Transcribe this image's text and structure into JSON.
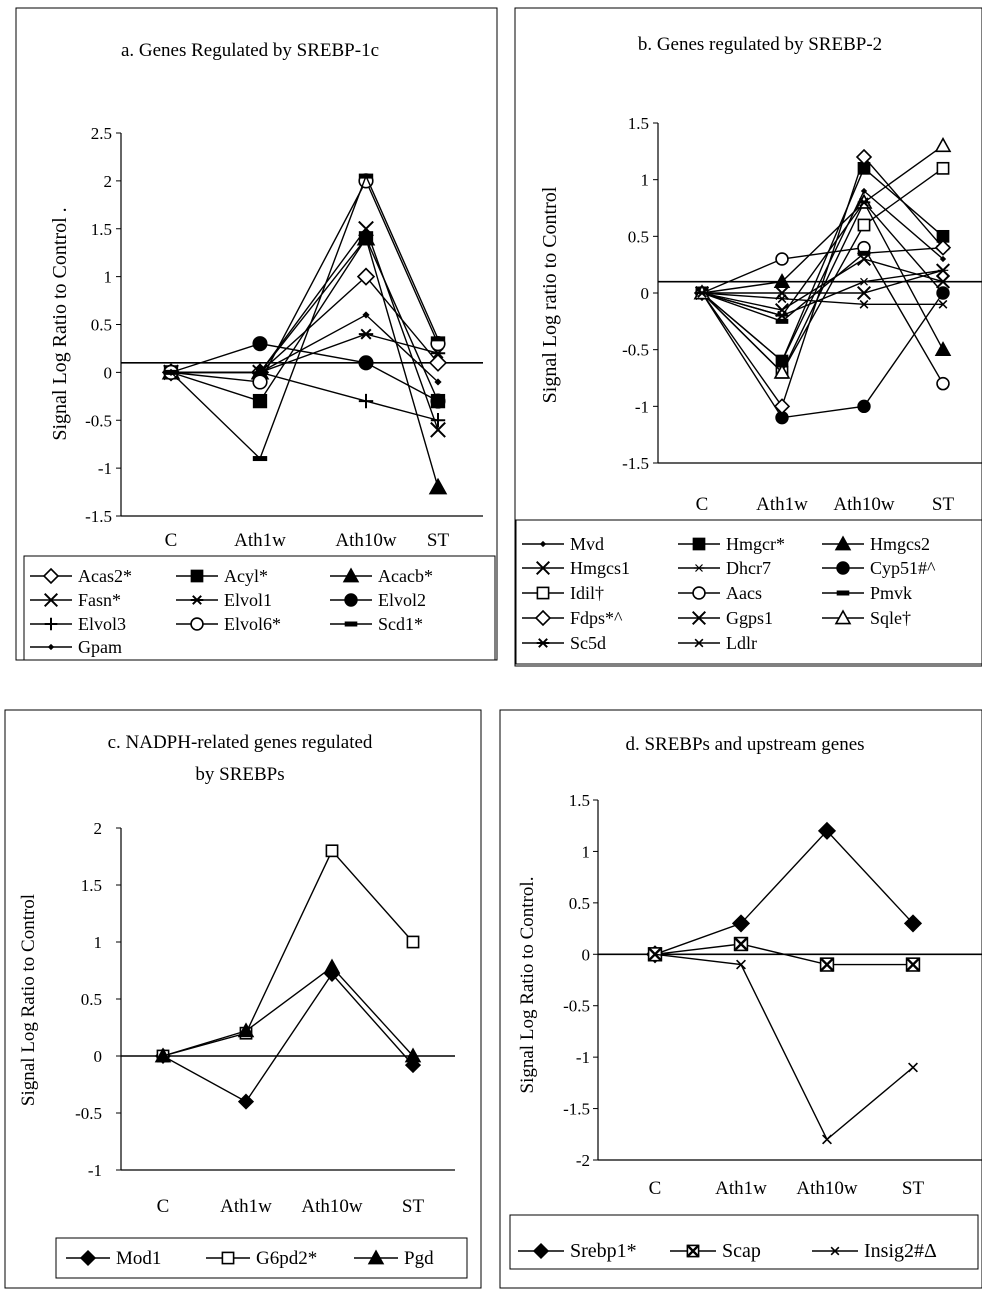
{
  "chart_data": [
    {
      "type": "line",
      "title": "a.  Genes Regulated by SREBP-1c",
      "ylabel": "Signal Log Ratio to Control .",
      "categories": [
        "C",
        "Ath1w",
        "Ath10w",
        "ST"
      ],
      "ylim": [
        -1.5,
        2.5
      ],
      "yticks": [
        "2.5",
        "2",
        "1.5",
        "1",
        "0.5",
        "0",
        "-0.5",
        "-1",
        "-1.5"
      ],
      "series": [
        {
          "name": "Acas2*",
          "marker": "diamond-open",
          "values": [
            0,
            0,
            1,
            0.1
          ]
        },
        {
          "name": "Acyl*",
          "marker": "square-filled",
          "values": [
            0,
            -0.3,
            1.4,
            -0.3
          ]
        },
        {
          "name": "Acacb*",
          "marker": "triangle-filled",
          "values": [
            0,
            0,
            1.4,
            -1.2
          ]
        },
        {
          "name": "Fasn*",
          "marker": "x",
          "values": [
            0,
            0,
            1.5,
            -0.6
          ]
        },
        {
          "name": "Elvol1",
          "marker": "star",
          "values": [
            0,
            0,
            0.4,
            0.2
          ]
        },
        {
          "name": "Elvol2",
          "marker": "circle-filled",
          "values": [
            0,
            0.3,
            0.1,
            -0.3
          ]
        },
        {
          "name": "Elvol3",
          "marker": "plus",
          "values": [
            0,
            0,
            -0.3,
            -0.5
          ]
        },
        {
          "name": "Elvol6*",
          "marker": "circle-open",
          "values": [
            0,
            -0.1,
            2,
            0.3
          ]
        },
        {
          "name": "Scd1*",
          "marker": "dash",
          "values": [
            0,
            -0.9,
            2.05,
            0.35
          ]
        },
        {
          "name": "Gpam",
          "marker": "dot",
          "values": [
            0,
            0,
            0.6,
            -0.1
          ]
        }
      ]
    },
    {
      "type": "line",
      "title": "b. Genes regulated by SREBP-2",
      "ylabel": "Signal Log ratio to Control",
      "categories": [
        "C",
        "Ath1w",
        "Ath10w",
        "ST"
      ],
      "ylim": [
        -1.5,
        1.5
      ],
      "yticks": [
        "1.5",
        "1",
        "0.5",
        "0",
        "-0.5",
        "-1",
        "-1.5"
      ],
      "series": [
        {
          "name": "Mvd",
          "marker": "dot",
          "values": [
            0,
            -0.6,
            0.9,
            0.3
          ]
        },
        {
          "name": "Hmgcr*",
          "marker": "square-filled",
          "values": [
            0,
            -0.6,
            1.1,
            0.5
          ]
        },
        {
          "name": "Hmgcs2",
          "marker": "triangle-filled",
          "values": [
            0,
            0.1,
            0.8,
            -0.5
          ]
        },
        {
          "name": "Hmgcs1",
          "marker": "x",
          "values": [
            0,
            -0.15,
            0.3,
            0.1
          ]
        },
        {
          "name": "Dhcr7",
          "marker": "star-thin",
          "values": [
            0,
            -0.2,
            0.1,
            0.2
          ]
        },
        {
          "name": "Cyp51#^",
          "marker": "circle-filled",
          "values": [
            0,
            -1.1,
            -1,
            0
          ]
        },
        {
          "name": "Idil†",
          "marker": "square-open",
          "values": [
            0,
            -0.7,
            0.6,
            1.1
          ]
        },
        {
          "name": "Aacs",
          "marker": "circle-open",
          "values": [
            0,
            0.3,
            0.4,
            -0.8
          ]
        },
        {
          "name": "Pmvk",
          "marker": "dash",
          "values": [
            0,
            -0.25,
            0.35,
            0.4
          ]
        },
        {
          "name": "Fdps*^",
          "marker": "diamond-open",
          "values": [
            0,
            -1,
            1.2,
            0.4
          ]
        },
        {
          "name": "Ggps1",
          "marker": "x",
          "values": [
            0,
            0,
            0,
            0.2
          ]
        },
        {
          "name": "Sqle†",
          "marker": "triangle-open",
          "values": [
            0,
            -0.7,
            0.8,
            1.3
          ]
        },
        {
          "name": "Sc5d",
          "marker": "star",
          "values": [
            0,
            -0.2,
            0.8,
            0
          ]
        },
        {
          "name": "Ldlr",
          "marker": "x-small",
          "values": [
            0,
            -0.05,
            -0.1,
            -0.1
          ]
        }
      ]
    },
    {
      "type": "line",
      "title": "c. NADPH-related genes regulated",
      "title_line2": "by SREBPs",
      "ylabel": "Signal Log Ratio to Control",
      "categories": [
        "C",
        "Ath1w",
        "Ath10w",
        "ST"
      ],
      "ylim": [
        -1,
        2
      ],
      "yticks": [
        "2",
        "1.5",
        "1",
        "0.5",
        "0",
        "-0.5",
        "-1"
      ],
      "series": [
        {
          "name": "Mod1",
          "marker": "diamond-filled",
          "values": [
            0,
            -0.4,
            0.72,
            -0.08
          ]
        },
        {
          "name": "G6pd2*",
          "marker": "square-open",
          "values": [
            0,
            0.2,
            1.8,
            1
          ]
        },
        {
          "name": "Pgd",
          "marker": "triangle-filled",
          "values": [
            0,
            0.22,
            0.78,
            0
          ]
        }
      ]
    },
    {
      "type": "line",
      "title": "d. SREBPs and upstream genes",
      "ylabel": "Signal Log Ratio to Control.",
      "categories": [
        "C",
        "Ath1w",
        "Ath10w",
        "ST"
      ],
      "ylim": [
        -2,
        1.5
      ],
      "yticks": [
        "1.5",
        "1",
        "0.5",
        "0",
        "-0.5",
        "-1",
        "-1.5",
        "-2"
      ],
      "series": [
        {
          "name": "Srebp1*",
          "marker": "diamond-filled",
          "values": [
            0,
            0.3,
            1.2,
            0.3
          ]
        },
        {
          "name": "Scap",
          "marker": "square-x",
          "values": [
            0,
            0.1,
            -0.1,
            -0.1
          ]
        },
        {
          "name": "Insig2#Δ",
          "marker": "x-small",
          "values": [
            0,
            -0.1,
            -1.8,
            -1.1
          ]
        }
      ]
    }
  ]
}
